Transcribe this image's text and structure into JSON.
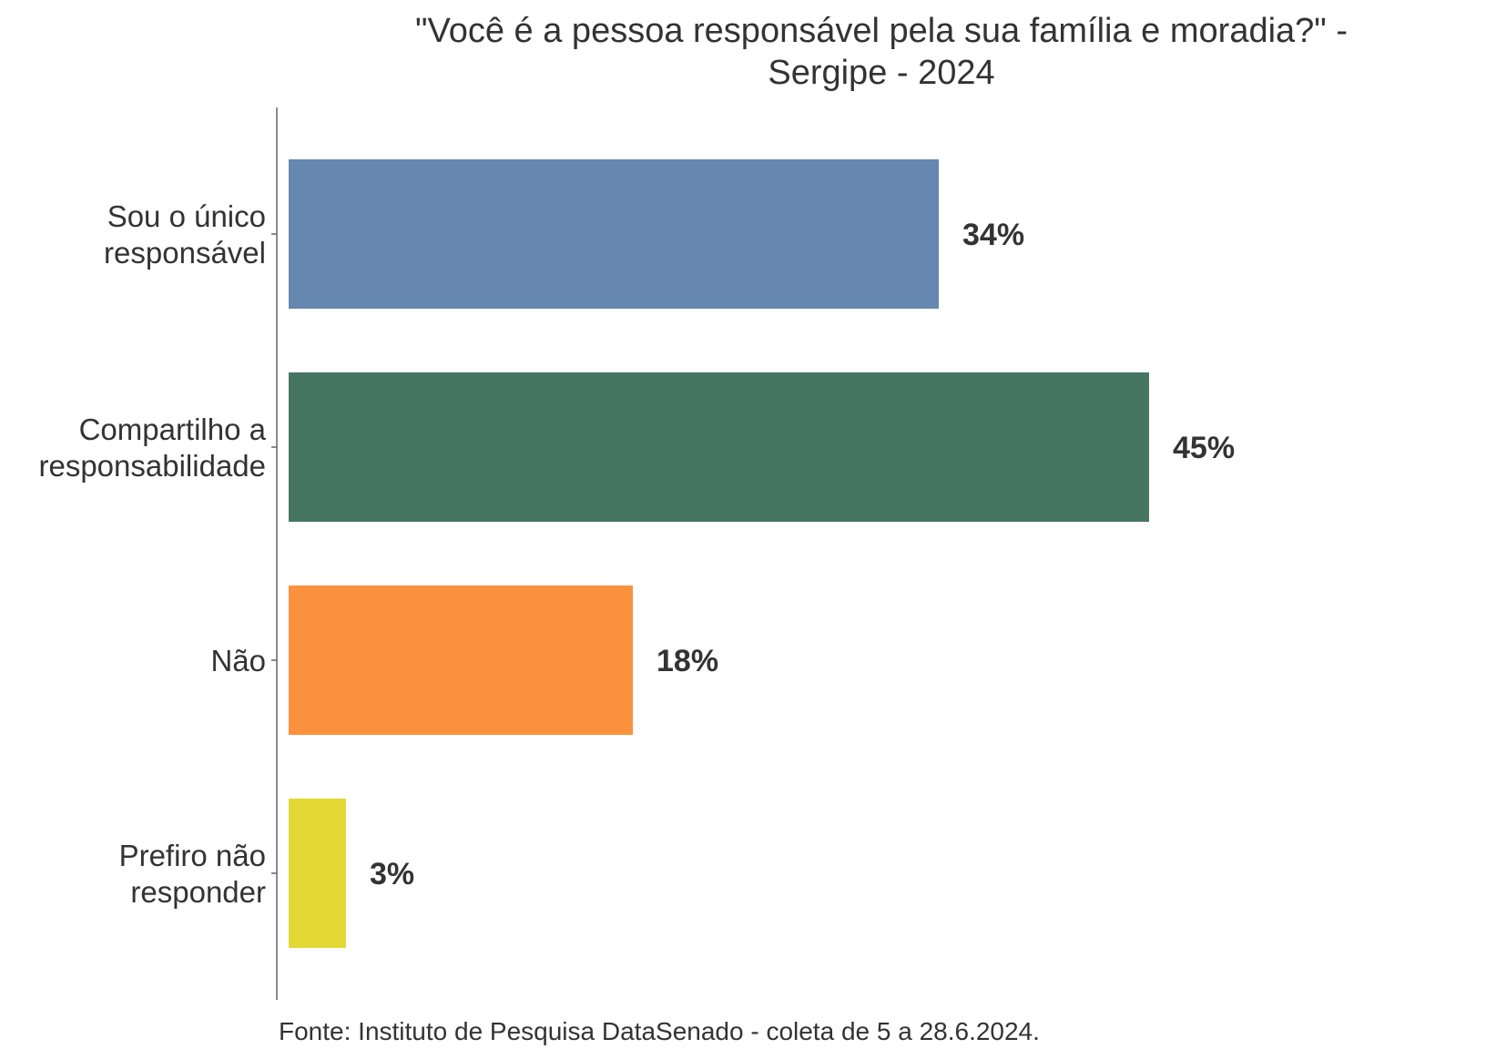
{
  "chart_data": {
    "type": "bar",
    "orientation": "horizontal",
    "title_lines": [
      "\"Você é a pessoa responsável pela sua família e moradia?\" -",
      "Sergipe - 2024"
    ],
    "categories": [
      [
        "Sou o único",
        "responsável"
      ],
      [
        "Compartilho a",
        "responsabilidade"
      ],
      [
        "Não"
      ],
      [
        "Prefiro não",
        "responder"
      ]
    ],
    "values": [
      34,
      45,
      18,
      3
    ],
    "value_labels": [
      "34%",
      "45%",
      "18%",
      "3%"
    ],
    "colors": [
      "#6587b0",
      "#467563",
      "#fa923d",
      "#e3d834"
    ],
    "xlim": [
      0,
      50
    ],
    "grid": false,
    "legend": "none",
    "source": "Fonte: Instituto de Pesquisa DataSenado - coleta de 5 a 28.6.2024."
  }
}
